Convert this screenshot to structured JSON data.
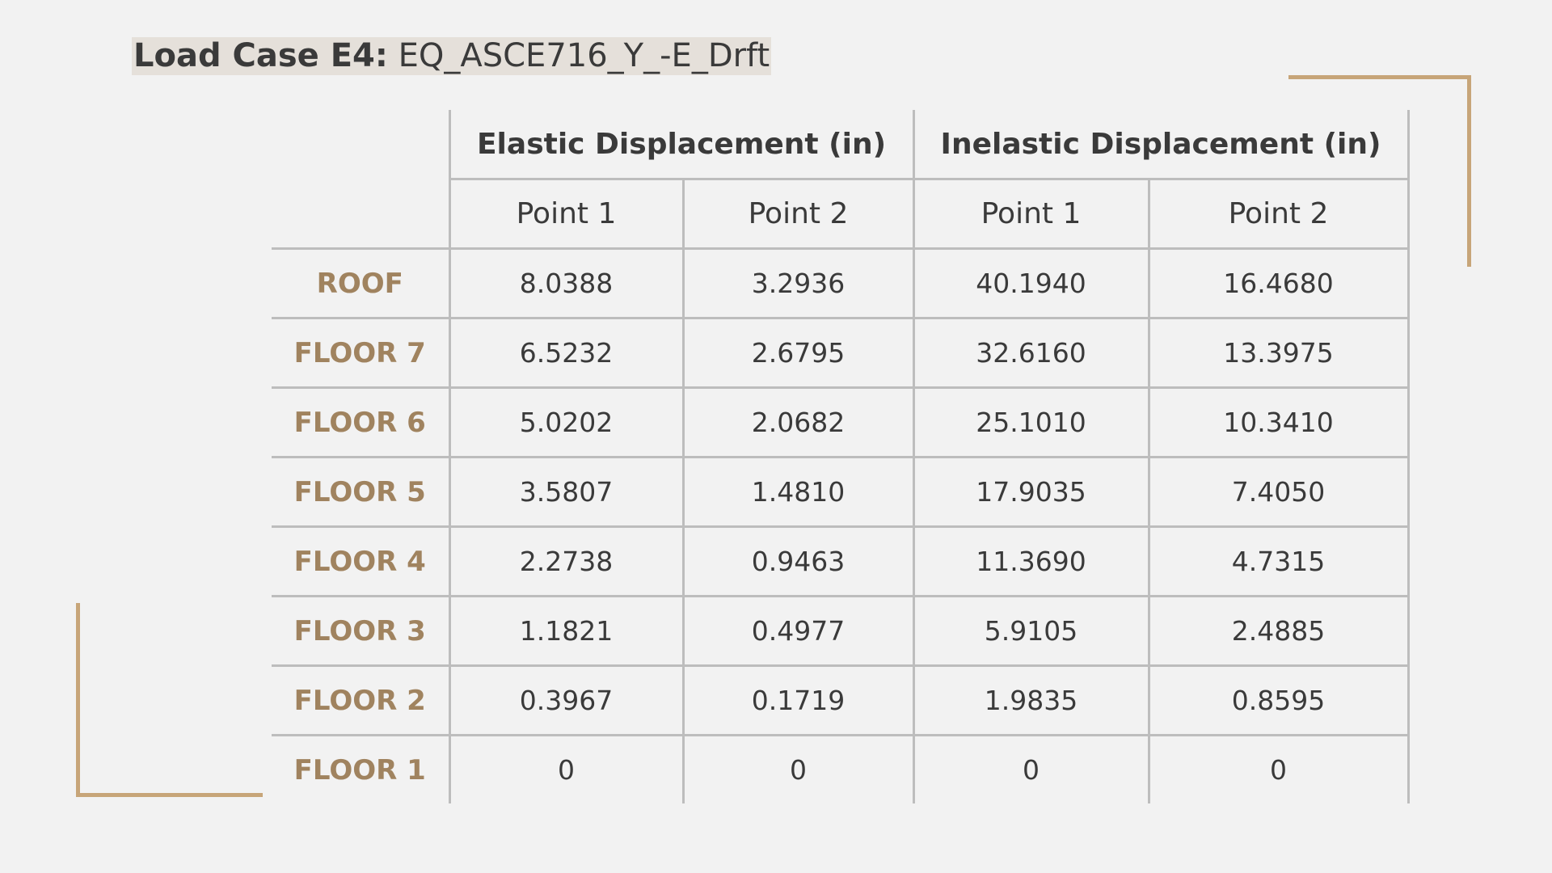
{
  "title": {
    "prefix": "Load Case E4:",
    "value": "EQ_ASCE716_Y_-E_Drft"
  },
  "accent_color": "#c7a579",
  "label_color": "#a0835f",
  "table": {
    "group_headers": [
      "Elastic Displacement (in)",
      "Inelastic Displacement (in)"
    ],
    "point_headers": [
      "Point 1",
      "Point 2",
      "Point 1",
      "Point 2"
    ],
    "rows": [
      {
        "label": "ROOF",
        "values": [
          "8.0388",
          "3.2936",
          "40.1940",
          "16.4680"
        ]
      },
      {
        "label": "FLOOR 7",
        "values": [
          "6.5232",
          "2.6795",
          "32.6160",
          "13.3975"
        ]
      },
      {
        "label": "FLOOR 6",
        "values": [
          "5.0202",
          "2.0682",
          "25.1010",
          "10.3410"
        ]
      },
      {
        "label": "FLOOR 5",
        "values": [
          "3.5807",
          "1.4810",
          "17.9035",
          "7.4050"
        ]
      },
      {
        "label": "FLOOR 4",
        "values": [
          "2.2738",
          "0.9463",
          "11.3690",
          "4.7315"
        ]
      },
      {
        "label": "FLOOR 3",
        "values": [
          "1.1821",
          "0.4977",
          "5.9105",
          "2.4885"
        ]
      },
      {
        "label": "FLOOR 2",
        "values": [
          "0.3967",
          "0.1719",
          "1.9835",
          "0.8595"
        ]
      },
      {
        "label": "FLOOR 1",
        "values": [
          "0",
          "0",
          "0",
          "0"
        ]
      }
    ]
  }
}
